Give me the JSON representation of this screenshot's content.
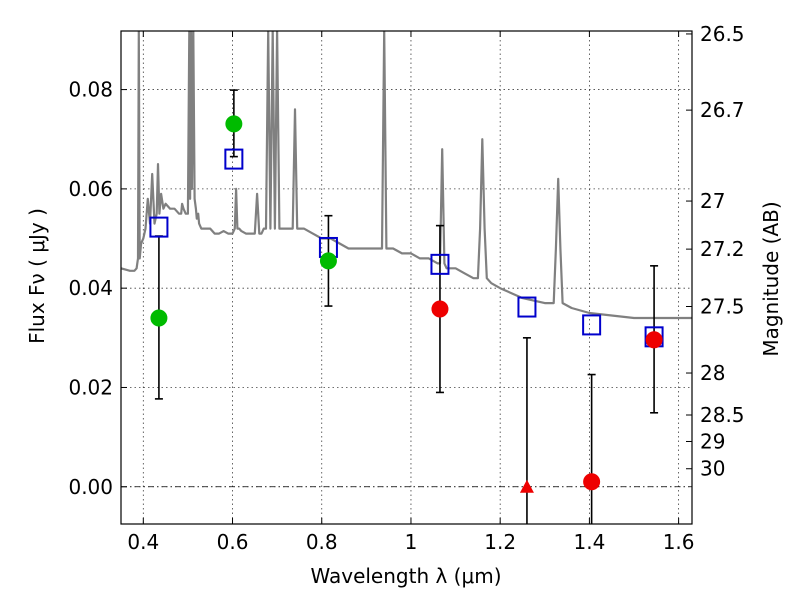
{
  "chart_data": {
    "type": "scatter",
    "xlabel": "Wavelength  λ (μm)",
    "ylabel": "Flux  Fν  ( μJy )",
    "y2label": "Magnitude (AB)",
    "xlim": [
      0.35,
      1.63
    ],
    "ylim": [
      -0.0075,
      0.0918
    ],
    "grid": true,
    "x_ticks": [
      {
        "value": 0.4,
        "label": "0.4"
      },
      {
        "value": 0.6,
        "label": "0.6"
      },
      {
        "value": 0.8,
        "label": "0.8"
      },
      {
        "value": 1.0,
        "label": "1"
      },
      {
        "value": 1.2,
        "label": "1.2"
      },
      {
        "value": 1.4,
        "label": "1.4"
      },
      {
        "value": 1.6,
        "label": "1.6"
      }
    ],
    "y_ticks": [
      {
        "value": 0.0,
        "label": "0.00"
      },
      {
        "value": 0.02,
        "label": "0.02"
      },
      {
        "value": 0.04,
        "label": "0.04"
      },
      {
        "value": 0.06,
        "label": "0.06"
      },
      {
        "value": 0.08,
        "label": "0.08"
      }
    ],
    "y2_ticks": [
      {
        "value": 26.5,
        "label": "26.5"
      },
      {
        "value": 26.7,
        "label": "26.7"
      },
      {
        "value": 27.0,
        "label": "27"
      },
      {
        "value": 27.2,
        "label": "27.2"
      },
      {
        "value": 27.5,
        "label": "27.5"
      },
      {
        "value": 28.0,
        "label": "28"
      },
      {
        "value": 28.5,
        "label": "28.5"
      },
      {
        "value": 29.0,
        "label": "29"
      },
      {
        "value": 30.0,
        "label": "30"
      }
    ],
    "series": [
      {
        "kind": "model_spectrum",
        "color": "#808080",
        "x": [
          0.35,
          0.37,
          0.38,
          0.385,
          0.388,
          0.39,
          0.392,
          0.395,
          0.4,
          0.405,
          0.41,
          0.415,
          0.42,
          0.425,
          0.43,
          0.433,
          0.436,
          0.44,
          0.445,
          0.45,
          0.46,
          0.47,
          0.48,
          0.485,
          0.487,
          0.49,
          0.495,
          0.5,
          0.503,
          0.505,
          0.507,
          0.509,
          0.512,
          0.515,
          0.518,
          0.52,
          0.523,
          0.525,
          0.53,
          0.54,
          0.55,
          0.56,
          0.57,
          0.58,
          0.59,
          0.6,
          0.605,
          0.608,
          0.611,
          0.615,
          0.62,
          0.63,
          0.64,
          0.65,
          0.655,
          0.66,
          0.665,
          0.67,
          0.675,
          0.68,
          0.685,
          0.69,
          0.695,
          0.7,
          0.705,
          0.71,
          0.72,
          0.73,
          0.735,
          0.74,
          0.745,
          0.75,
          0.76,
          0.78,
          0.8,
          0.82,
          0.84,
          0.86,
          0.88,
          0.9,
          0.92,
          0.935,
          0.94,
          0.945,
          0.95,
          0.96,
          0.98,
          1.0,
          1.02,
          1.04,
          1.06,
          1.065,
          1.07,
          1.075,
          1.08,
          1.09,
          1.1,
          1.12,
          1.14,
          1.15,
          1.155,
          1.16,
          1.165,
          1.17,
          1.18,
          1.2,
          1.25,
          1.3,
          1.32,
          1.325,
          1.33,
          1.335,
          1.34,
          1.36,
          1.4,
          1.45,
          1.5,
          1.55,
          1.58,
          1.6,
          1.63
        ],
        "y": [
          0.044,
          0.0435,
          0.0435,
          0.044,
          0.046,
          0.092,
          0.046,
          0.049,
          0.05,
          0.052,
          0.058,
          0.053,
          0.063,
          0.053,
          0.055,
          0.065,
          0.055,
          0.059,
          0.056,
          0.057,
          0.056,
          0.056,
          0.055,
          0.055,
          0.057,
          0.056,
          0.055,
          0.055,
          0.092,
          0.058,
          0.092,
          0.06,
          0.092,
          0.058,
          0.056,
          0.054,
          0.055,
          0.053,
          0.052,
          0.052,
          0.052,
          0.051,
          0.051,
          0.0515,
          0.051,
          0.051,
          0.052,
          0.06,
          0.052,
          0.052,
          0.0515,
          0.051,
          0.051,
          0.051,
          0.059,
          0.051,
          0.051,
          0.052,
          0.052,
          0.092,
          0.052,
          0.092,
          0.052,
          0.092,
          0.052,
          0.052,
          0.052,
          0.052,
          0.052,
          0.076,
          0.052,
          0.052,
          0.052,
          0.051,
          0.05,
          0.05,
          0.049,
          0.048,
          0.048,
          0.048,
          0.048,
          0.048,
          0.092,
          0.048,
          0.048,
          0.048,
          0.047,
          0.047,
          0.046,
          0.046,
          0.045,
          0.045,
          0.068,
          0.045,
          0.044,
          0.044,
          0.044,
          0.043,
          0.042,
          0.042,
          0.052,
          0.07,
          0.052,
          0.042,
          0.041,
          0.04,
          0.038,
          0.037,
          0.037,
          0.048,
          0.062,
          0.048,
          0.037,
          0.036,
          0.035,
          0.0345,
          0.034,
          0.034,
          0.034,
          0.034,
          0.034
        ]
      },
      {
        "kind": "model_band_flux",
        "marker": "open-square",
        "color": "#0000cc",
        "x": [
          0.435,
          0.603,
          0.815,
          1.065,
          1.26,
          1.405,
          1.545
        ],
        "y": [
          0.0523,
          0.066,
          0.0482,
          0.0448,
          0.0362,
          0.0326,
          0.0302
        ]
      },
      {
        "kind": "observed_detection",
        "marker": "filled-circle",
        "color": "#00bb00",
        "x": [
          0.435,
          0.603,
          0.815
        ],
        "y": [
          0.034,
          0.0731,
          0.0455
        ],
        "yerr_low": [
          0.0177,
          0.0665,
          0.0364
        ],
        "yerr_high": [
          0.0505,
          0.0799,
          0.0546
        ]
      },
      {
        "kind": "observed_detection",
        "marker": "filled-circle",
        "color": "#ee0000",
        "x": [
          1.065,
          1.405,
          1.545
        ],
        "y": [
          0.0358,
          0.001,
          0.0296
        ],
        "yerr_low": [
          0.019,
          -0.0075,
          0.0149
        ],
        "yerr_high": [
          0.0526,
          0.0226,
          0.0445
        ]
      },
      {
        "kind": "observed_limit",
        "marker": "filled-triangle",
        "color": "#ee0000",
        "x": [
          1.26
        ],
        "y": [
          0.0
        ],
        "yerr_low": [
          -0.0075
        ],
        "yerr_high": [
          0.03
        ]
      }
    ]
  }
}
